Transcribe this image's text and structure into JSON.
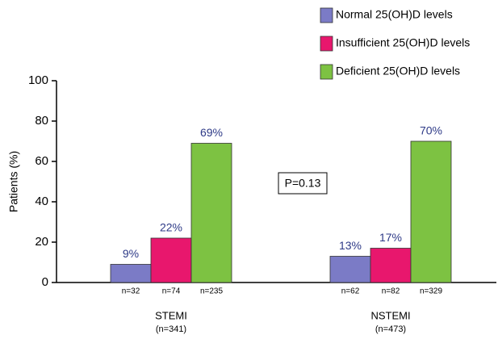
{
  "chart_data": {
    "type": "bar",
    "y_label": "Patients (%)",
    "categories": [
      "STEMI",
      "NSTEMI"
    ],
    "category_notes": [
      "(n=341)",
      "(n=473)"
    ],
    "series": [
      {
        "name": "Normal 25(OH)D levels",
        "color": "#7b7bc6",
        "values": [
          9,
          13
        ],
        "value_labels": [
          "9%",
          "13%"
        ],
        "sample_labels": [
          "n=32",
          "n=62"
        ]
      },
      {
        "name": "Insufficient 25(OH)D levels",
        "color": "#e8176d",
        "values": [
          22,
          17
        ],
        "value_labels": [
          "22%",
          "17%"
        ],
        "sample_labels": [
          "n=74",
          "n=82"
        ]
      },
      {
        "name": "Deficient 25(OH)D levels",
        "color": "#7dc242",
        "values": [
          69,
          70
        ],
        "value_labels": [
          "69%",
          "70%"
        ],
        "sample_labels": [
          "n=235",
          "n=329"
        ]
      }
    ],
    "annotation": "P=0.13",
    "ylim": [
      0,
      100
    ],
    "yticks": [
      0,
      20,
      40,
      60,
      80,
      100
    ]
  }
}
